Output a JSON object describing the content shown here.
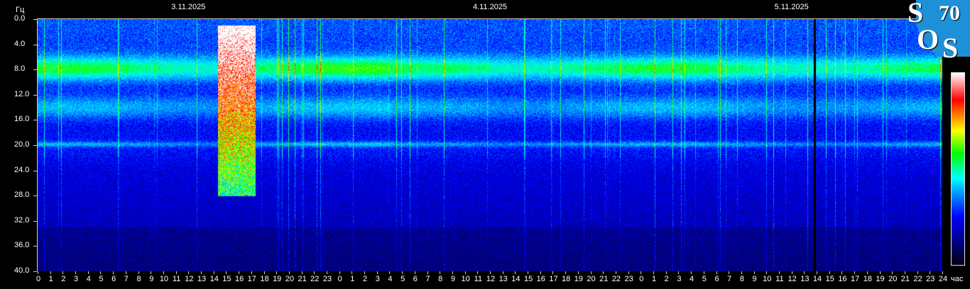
{
  "chart_data": {
    "type": "heatmap",
    "title": "",
    "ylabel": "Гц",
    "xlabel": "час",
    "ylim": [
      0,
      40
    ],
    "y_ticks": [
      "0.0",
      "4.0",
      "8.0",
      "12.0",
      "16.0",
      "20.0",
      "24.0",
      "28.0",
      "32.0",
      "36.0",
      "40.0"
    ],
    "x_range_hours": [
      0,
      72
    ],
    "x_tick_labels": [
      "0",
      "1",
      "2",
      "3",
      "4",
      "5",
      "6",
      "7",
      "8",
      "9",
      "10",
      "11",
      "12",
      "13",
      "14",
      "15",
      "16",
      "17",
      "18",
      "19",
      "20",
      "21",
      "22",
      "23",
      "0",
      "1",
      "2",
      "3",
      "4",
      "5",
      "6",
      "7",
      "8",
      "9",
      "10",
      "11",
      "12",
      "13",
      "14",
      "15",
      "16",
      "17",
      "18",
      "19",
      "20",
      "21",
      "22",
      "23",
      "0",
      "1",
      "2",
      "3",
      "4",
      "5",
      "6",
      "7",
      "8",
      "9",
      "10",
      "11",
      "12",
      "13",
      "14",
      "15",
      "16",
      "17",
      "18",
      "19",
      "20",
      "21",
      "22",
      "23",
      "24"
    ],
    "dates": [
      "3.11.2025",
      "4.11.2025",
      "5.11.2025"
    ],
    "colormap": [
      "#000010",
      "#0000ff",
      "#00ffff",
      "#00ff00",
      "#ffff00",
      "#ff0000",
      "#ffffff"
    ],
    "bands_hz": [
      {
        "freq": 7.8,
        "width": 1.3,
        "intensity": 0.55
      },
      {
        "freq": 14.0,
        "width": 1.3,
        "intensity": 0.43
      },
      {
        "freq": 19.8,
        "width": 0.3,
        "intensity": 0.42
      },
      {
        "freq": 20.5,
        "width": 1.5,
        "intensity": 0.33
      },
      {
        "freq": 27.0,
        "width": 1.5,
        "intensity": 0.3
      }
    ],
    "bursts": [
      {
        "day": "3.11.2025",
        "hours": [
          14.3,
          17.3
        ],
        "freq_hz": [
          1,
          22
        ],
        "intensity": 0.95
      }
    ],
    "gaps": [
      {
        "day": "5.11.2025",
        "hour": 13.8
      }
    ],
    "grid": false
  },
  "logo": {
    "text": "SOS70"
  }
}
